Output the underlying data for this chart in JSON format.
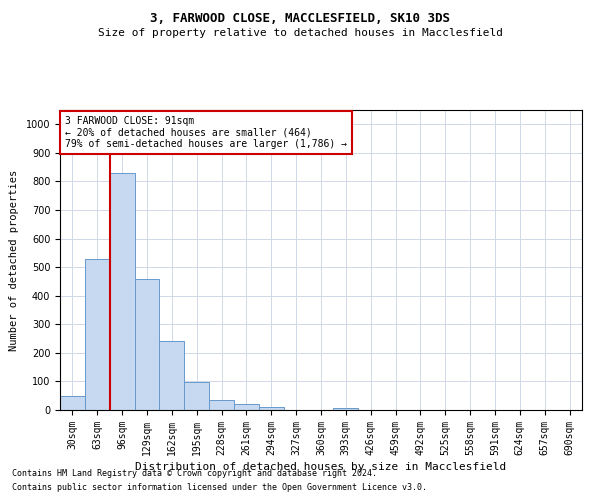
{
  "title_line1": "3, FARWOOD CLOSE, MACCLESFIELD, SK10 3DS",
  "title_line2": "Size of property relative to detached houses in Macclesfield",
  "xlabel": "Distribution of detached houses by size in Macclesfield",
  "ylabel": "Number of detached properties",
  "footnote1": "Contains HM Land Registry data © Crown copyright and database right 2024.",
  "footnote2": "Contains public sector information licensed under the Open Government Licence v3.0.",
  "categories": [
    "30sqm",
    "63sqm",
    "96sqm",
    "129sqm",
    "162sqm",
    "195sqm",
    "228sqm",
    "261sqm",
    "294sqm",
    "327sqm",
    "360sqm",
    "393sqm",
    "426sqm",
    "459sqm",
    "492sqm",
    "525sqm",
    "558sqm",
    "591sqm",
    "624sqm",
    "657sqm",
    "690sqm"
  ],
  "values": [
    50,
    530,
    830,
    460,
    240,
    97,
    35,
    20,
    10,
    0,
    0,
    8,
    0,
    0,
    0,
    0,
    0,
    0,
    0,
    0,
    0
  ],
  "bar_color": "#c6d9f0",
  "bar_edge_color": "#6699cc",
  "subject_line_color": "#cc0000",
  "ylim": [
    0,
    1050
  ],
  "yticks": [
    0,
    100,
    200,
    300,
    400,
    500,
    600,
    700,
    800,
    900,
    1000
  ],
  "annotation_text": "3 FARWOOD CLOSE: 91sqm\n← 20% of detached houses are smaller (464)\n79% of semi-detached houses are larger (1,786) →",
  "annotation_box_color": "#ffffff",
  "annotation_box_edge": "#cc0000",
  "grid_color": "#d0d8e8",
  "background_color": "#ffffff",
  "title_fontsize": 9,
  "subtitle_fontsize": 8,
  "tick_fontsize": 7,
  "ylabel_fontsize": 7.5,
  "xlabel_fontsize": 8,
  "annot_fontsize": 7,
  "footnote_fontsize": 6
}
